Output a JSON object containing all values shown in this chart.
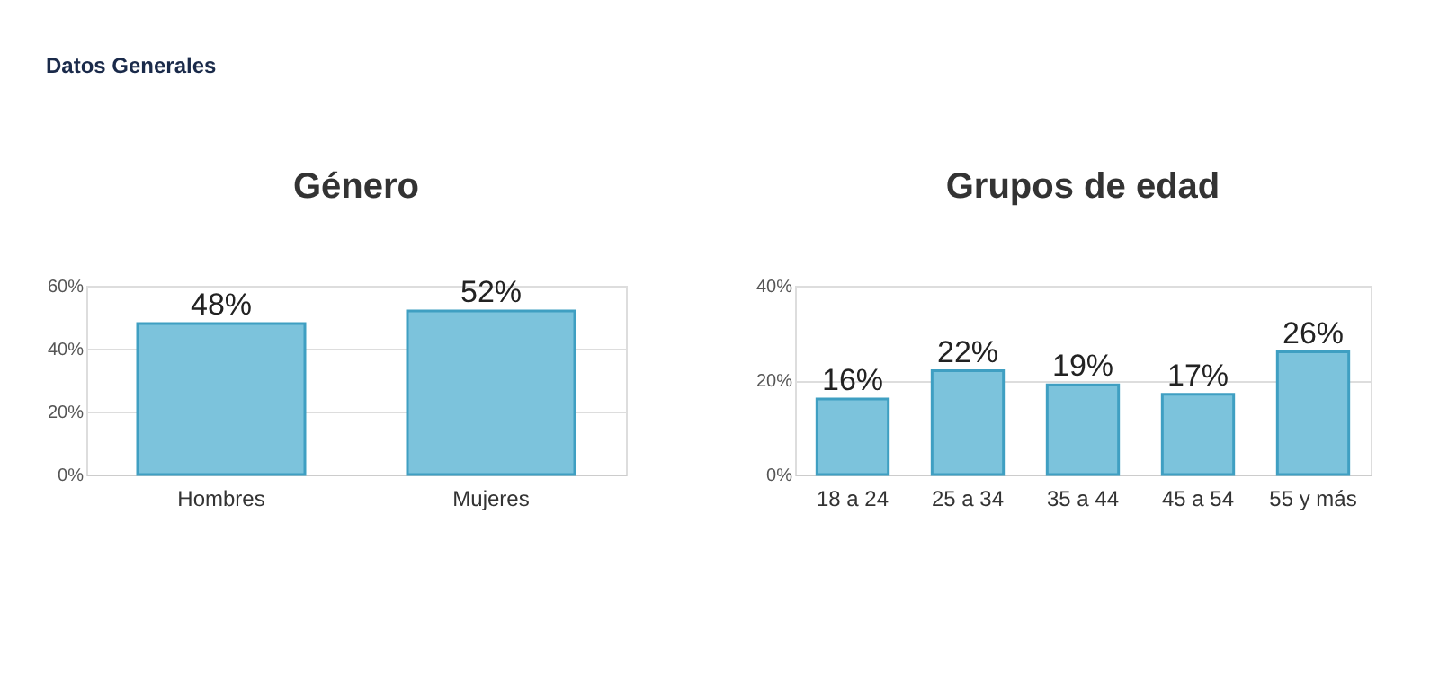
{
  "chart_data": [
    {
      "type": "bar",
      "title": "Género",
      "annotations": [
        "Datos Generales"
      ],
      "categories": [
        "Hombres",
        "Mujeres"
      ],
      "values": [
        48,
        52
      ],
      "color": "#7cc3dc",
      "value_labels": [
        "48%",
        "52%"
      ],
      "ylim": [
        0,
        60
      ],
      "yticks": [
        {
          "value": 0,
          "label": "0%"
        },
        {
          "value": 20,
          "label": "20%"
        },
        {
          "value": 40,
          "label": "40%"
        },
        {
          "value": 60,
          "label": "60%"
        }
      ],
      "grid": "y"
    },
    {
      "type": "bar",
      "title": "Grupos de edad",
      "categories": [
        "18 a 24",
        "25 a 34",
        "35 a 44",
        "45 a 54",
        "55 y más"
      ],
      "values": [
        16,
        22,
        19,
        17,
        26
      ],
      "color": "#7cc3dc",
      "value_labels": [
        "16%",
        "22%",
        "19%",
        "17%",
        "26%"
      ],
      "ylim": [
        0,
        40
      ],
      "yticks": [
        {
          "value": 0,
          "label": "0%"
        },
        {
          "value": 20,
          "label": "20%"
        },
        {
          "value": 40,
          "label": "40%"
        }
      ],
      "grid": "y"
    }
  ]
}
